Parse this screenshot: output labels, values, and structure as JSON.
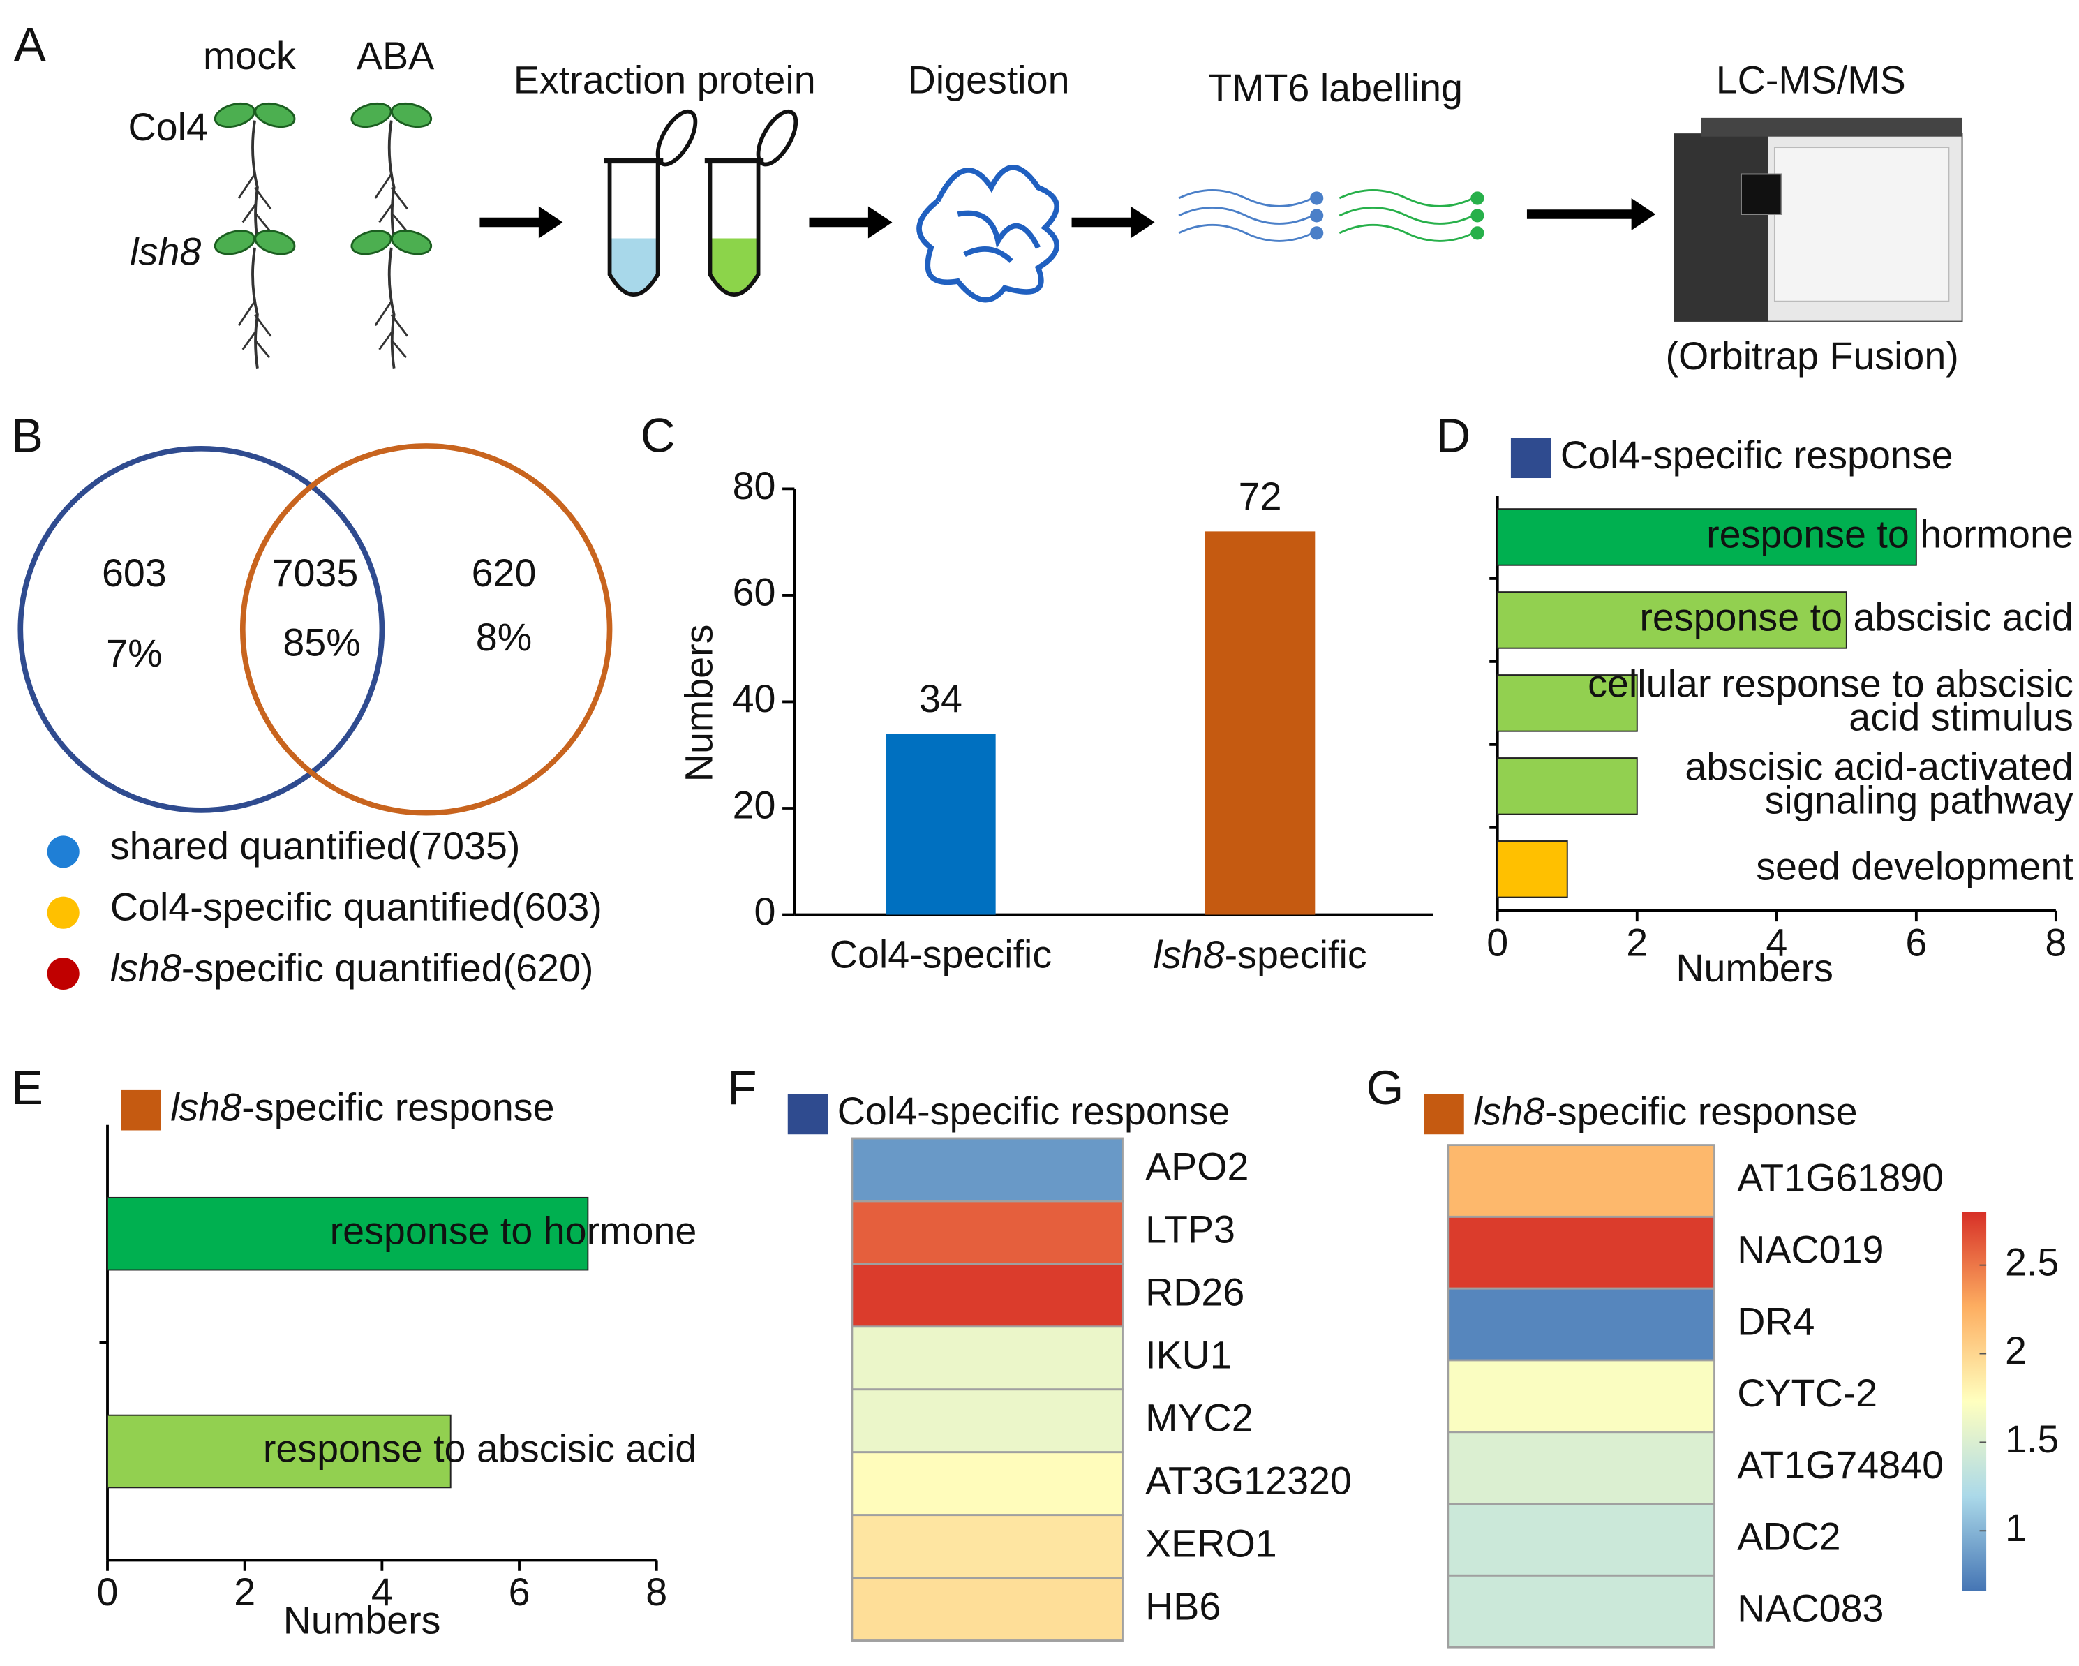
{
  "workflow": {
    "panel": "A",
    "columns": [
      "mock",
      "ABA"
    ],
    "rows": [
      "Col4",
      "lsh8"
    ],
    "steps": [
      "Extraction protein",
      "Digestion",
      "TMT6 labelling",
      "LC-MS/MS"
    ],
    "instrument": "(Orbitrap Fusion)"
  },
  "chart_data": [
    {
      "type": "venn",
      "panel": "B",
      "values": [
        603,
        7035,
        620
      ],
      "value_colors": [
        "#f5b800",
        "#1f78c8",
        "#c0141c"
      ],
      "percents": [
        7,
        85,
        8
      ],
      "percent_labels": [
        "7%",
        "85%",
        "8%"
      ],
      "circle_colors": [
        "#2f4b8f",
        "#c8641e"
      ],
      "legend": [
        {
          "name": "shared quantified(7035)",
          "color": "#1f7fd6"
        },
        {
          "name": "Col4-specific quantified(603)",
          "color": "#ffc000"
        },
        {
          "name": "lsh8-specific quantified(620)",
          "color": "#c00000"
        }
      ]
    },
    {
      "type": "bar",
      "panel": "C",
      "categories": [
        "Col4-specific",
        "lsh8-specific"
      ],
      "values": [
        34,
        72
      ],
      "colors": [
        "#0070c0",
        "#c55a11"
      ],
      "ylabel": "Numbers",
      "ylim": [
        0,
        80
      ],
      "yticks": [
        0,
        20,
        40,
        60,
        80
      ]
    },
    {
      "type": "barh",
      "panel": "D",
      "legend": {
        "name": "Col4-specific response",
        "color": "#2f4b8f"
      },
      "categories": [
        "response to hormone",
        "response to abscisic acid",
        "cellular response to abscisic acid stimulus",
        "abscisic acid-activated signaling pathway",
        "seed development"
      ],
      "values": [
        6,
        5,
        2,
        2,
        1
      ],
      "colors": [
        "#00b050",
        "#92d050",
        "#92d050",
        "#92d050",
        "#ffc000"
      ],
      "xlabel": "Numbers",
      "xlim": [
        0,
        8
      ],
      "xticks": [
        0,
        2,
        4,
        6,
        8
      ]
    },
    {
      "type": "barh",
      "panel": "E",
      "legend": {
        "name": "lsh8-specific response",
        "color": "#c55a11"
      },
      "categories": [
        "response to hormone",
        "response to abscisic acid"
      ],
      "values": [
        7,
        5
      ],
      "colors": [
        "#00b050",
        "#92d050"
      ],
      "xlabel": "Numbers",
      "xlim": [
        0,
        8
      ],
      "xticks": [
        0,
        2,
        4,
        6,
        8
      ]
    },
    {
      "type": "heatmap",
      "panel": "F",
      "legend": {
        "name": "Col4-specific response",
        "color": "#2f4b8f"
      },
      "rows": [
        "APO2",
        "LTP3",
        "RD26",
        "IKU1",
        "MYC2",
        "AT3G12320",
        "XERO1",
        "HB6"
      ],
      "label_colors": [
        "#000000",
        "#e02020",
        "#e02020",
        "#e02020",
        "#e02020",
        "#000000",
        "#e02020",
        "#e02020"
      ],
      "values": [
        0.85,
        2.6,
        2.75,
        1.6,
        1.6,
        1.75,
        1.9,
        1.95
      ],
      "zlim": [
        0.66,
        2.8
      ],
      "colormap": [
        "#4575b4",
        "#abd9e9",
        "#ffffbf",
        "#fdae61",
        "#d73027"
      ]
    },
    {
      "type": "heatmap",
      "panel": "G",
      "legend": {
        "name": "lsh8-specific response",
        "color": "#c55a11"
      },
      "rows": [
        "AT1G61890",
        "NAC019",
        "DR4",
        "CYTC-2",
        "AT1G74840",
        "ADC2",
        "NAC083"
      ],
      "label_colors": [
        "#e02020",
        "#e02020",
        "#e02020",
        "#e02020",
        "#e02020",
        "#e02020",
        "#e02020"
      ],
      "values": [
        2.2,
        2.75,
        0.75,
        1.7,
        1.5,
        1.4,
        1.4
      ],
      "zlim": [
        0.66,
        2.8
      ],
      "zticks": [
        1,
        1.5,
        2,
        2.5
      ],
      "colorbar": true,
      "colormap": [
        "#4575b4",
        "#abd9e9",
        "#ffffbf",
        "#fdae61",
        "#d73027"
      ]
    }
  ]
}
